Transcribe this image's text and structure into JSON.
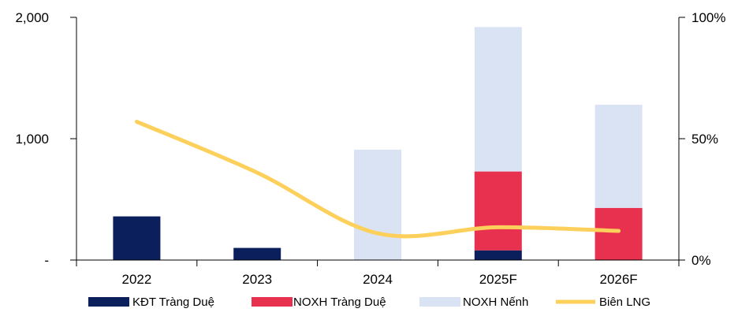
{
  "chart_data": {
    "type": "bar",
    "stacked": true,
    "categories": [
      "2022",
      "2023",
      "2024",
      "2025F",
      "2026F"
    ],
    "series": [
      {
        "name": "KĐT Tràng Duệ",
        "type": "bar",
        "axis": "left",
        "color": "#0b1f5c",
        "values": [
          360,
          100,
          0,
          80,
          0
        ]
      },
      {
        "name": "NOXH Tràng Duệ",
        "type": "bar",
        "axis": "left",
        "color": "#e8304f",
        "values": [
          0,
          0,
          0,
          650,
          430
        ]
      },
      {
        "name": "NOXH Nếnh",
        "type": "bar",
        "axis": "left",
        "color": "#dae3f3",
        "values": [
          0,
          0,
          910,
          1190,
          850
        ]
      },
      {
        "name": "Biên LNG",
        "type": "line",
        "axis": "right",
        "color": "#fcd05a",
        "values": [
          57,
          36,
          11,
          13.5,
          12
        ]
      }
    ],
    "y_left": {
      "min": 0,
      "max": 2000,
      "ticks": [
        {
          "value": 0,
          "label": "-"
        },
        {
          "value": 1000,
          "label": "1,000"
        },
        {
          "value": 2000,
          "label": "2,000"
        }
      ]
    },
    "y_right": {
      "min": 0,
      "max": 100,
      "ticks": [
        {
          "value": 0,
          "label": "0%"
        },
        {
          "value": 50,
          "label": "50%"
        },
        {
          "value": 100,
          "label": "100%"
        }
      ]
    },
    "grid": false,
    "legend_position": "bottom"
  }
}
